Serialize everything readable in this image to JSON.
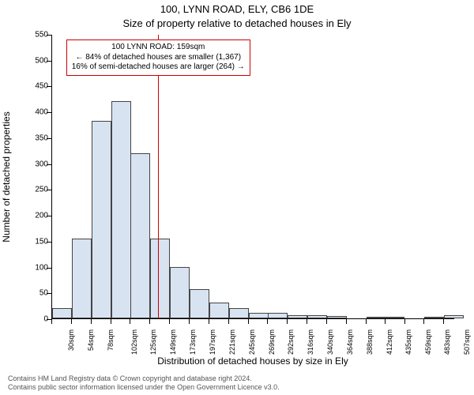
{
  "header": {
    "super_title": "100, LYNN ROAD, ELY, CB6 1DE",
    "title": "Size of property relative to detached houses in Ely"
  },
  "axes": {
    "x_label": "Distribution of detached houses by size in Ely",
    "y_label": "Number of detached properties",
    "x_min": 30,
    "x_max": 520,
    "y_min": 0,
    "y_max": 550,
    "y_ticks": [
      0,
      50,
      100,
      150,
      200,
      250,
      300,
      350,
      400,
      450,
      500,
      550
    ],
    "x_ticks": [
      30,
      54,
      78,
      102,
      125,
      149,
      173,
      197,
      221,
      245,
      269,
      292,
      316,
      340,
      364,
      388,
      412,
      435,
      459,
      483,
      507
    ],
    "x_tick_unit": "sqm"
  },
  "chart": {
    "type": "histogram",
    "bin_width": 24,
    "bar_color": "#d8e3f2",
    "bar_border": "#444444",
    "background_color": "#ffffff",
    "bars": [
      {
        "x_left": 30,
        "value": 20
      },
      {
        "x_left": 54,
        "value": 155
      },
      {
        "x_left": 78,
        "value": 382
      },
      {
        "x_left": 102,
        "value": 420
      },
      {
        "x_left": 125,
        "value": 320
      },
      {
        "x_left": 149,
        "value": 155
      },
      {
        "x_left": 173,
        "value": 100
      },
      {
        "x_left": 197,
        "value": 57
      },
      {
        "x_left": 221,
        "value": 30
      },
      {
        "x_left": 245,
        "value": 20
      },
      {
        "x_left": 269,
        "value": 10
      },
      {
        "x_left": 292,
        "value": 10
      },
      {
        "x_left": 316,
        "value": 6
      },
      {
        "x_left": 340,
        "value": 6
      },
      {
        "x_left": 364,
        "value": 4
      },
      {
        "x_left": 388,
        "value": 0
      },
      {
        "x_left": 412,
        "value": 3
      },
      {
        "x_left": 435,
        "value": 3
      },
      {
        "x_left": 459,
        "value": 0
      },
      {
        "x_left": 483,
        "value": 3
      },
      {
        "x_left": 507,
        "value": 6
      }
    ]
  },
  "marker": {
    "x_value": 159,
    "line_color": "#cc0000",
    "box_border": "#cc0000",
    "lines": [
      "100 LYNN ROAD: 159sqm",
      "← 84% of detached houses are smaller (1,367)",
      "16% of semi-detached houses are larger (264) →"
    ]
  },
  "footer": {
    "line1": "Contains HM Land Registry data © Crown copyright and database right 2024.",
    "line2": "Contains public sector information licensed under the Open Government Licence v3.0."
  }
}
